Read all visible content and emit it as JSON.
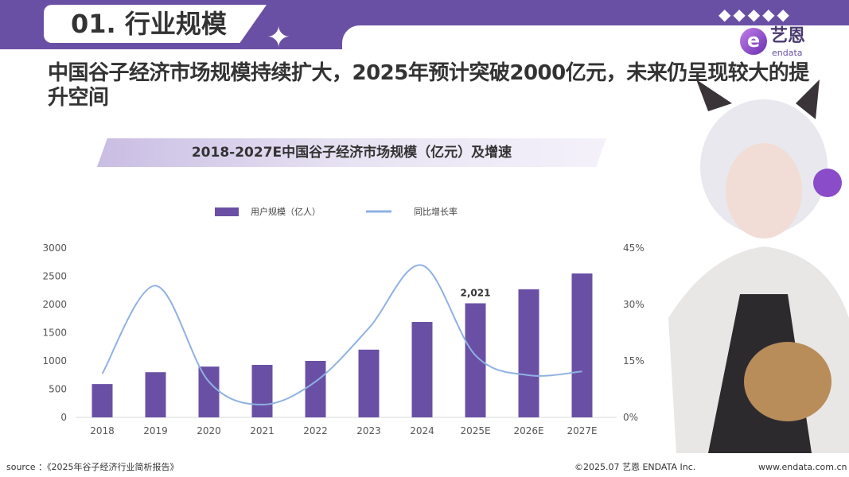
{
  "header": {
    "section_title": "01. 行业规模",
    "logo_cn": "艺恩",
    "logo_en": "endata"
  },
  "headline": "中国谷子经济市场规模持续扩大，2025年预计突破2000亿元，未来仍呈现较大的提升空间",
  "chart_data": {
    "type": "bar+line",
    "title": "2018-2027E中国谷子经济市场规模（亿元）及增速",
    "categories": [
      "2018",
      "2019",
      "2020",
      "2021",
      "2022",
      "2023",
      "2024",
      "2025E",
      "2026E",
      "2027E"
    ],
    "series": [
      {
        "name": "用户规模（亿人）",
        "type": "bar",
        "axis": "left",
        "color": "#6a50a4",
        "values": [
          590,
          800,
          900,
          930,
          1000,
          1200,
          1690,
          2021,
          2270,
          2550
        ]
      },
      {
        "name": "同比增长率",
        "type": "line",
        "axis": "right",
        "color": "#8fb1e3",
        "values": [
          11.6,
          35,
          9.5,
          3.4,
          9.5,
          23.7,
          40.4,
          16.5,
          11.2,
          12.2
        ]
      }
    ],
    "data_labels": [
      {
        "category": "2025E",
        "text": "2,021"
      }
    ],
    "y_left": {
      "range": [
        0,
        3000
      ],
      "ticks": [
        "0",
        "500",
        "1000",
        "1500",
        "2000",
        "2500",
        "3000"
      ]
    },
    "y_right": {
      "range": [
        0,
        45
      ],
      "ticks": [
        "0%",
        "15%",
        "30%",
        "45%"
      ]
    },
    "legend": "top",
    "grid": false
  },
  "footer": {
    "source": "source ：《2025年谷子经济行业简析报告》",
    "copyright": "©2025.07  艺恩 ENDATA Inc.",
    "url": "www.endata.com.cn"
  }
}
